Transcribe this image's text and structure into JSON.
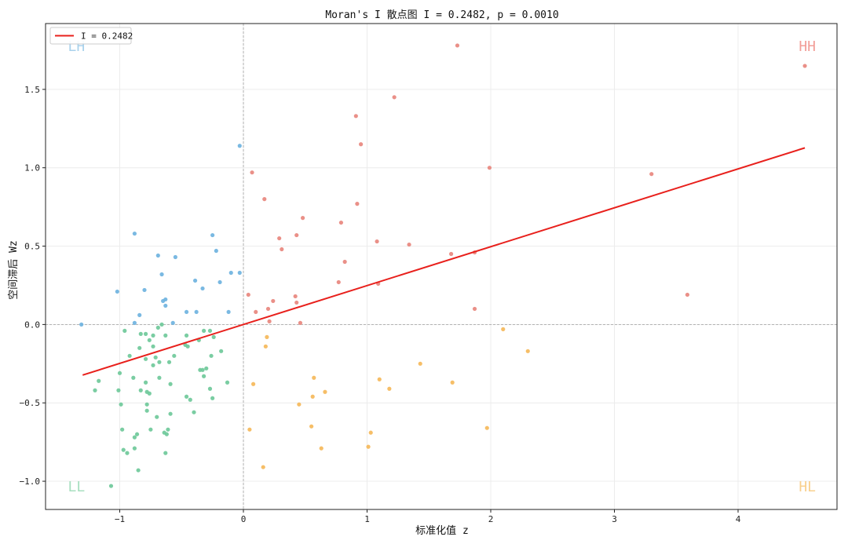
{
  "chart_data": {
    "type": "scatter",
    "title": "Moran's I 散点图   I = 0.2482,  p = 0.0010",
    "xlabel": "标准化值  z",
    "ylabel": "空间滞后  Wz",
    "xlim": [
      -1.6,
      4.8
    ],
    "ylim": [
      -1.18,
      1.92
    ],
    "xticks": [
      -1,
      0,
      1,
      2,
      3,
      4
    ],
    "yticks": [
      -1.0,
      -0.5,
      0.0,
      0.5,
      1.0,
      1.5
    ],
    "xtick_labels": [
      "−1",
      "0",
      "1",
      "2",
      "3",
      "4"
    ],
    "ytick_labels": [
      "−1.0",
      "−0.5",
      "0.0",
      "0.5",
      "1.0",
      "1.5"
    ],
    "grid": true,
    "legend": {
      "position": "top-left",
      "entries": [
        {
          "label": "I = 0.2482",
          "color": "#e8201c"
        }
      ]
    },
    "regression_line": {
      "slope": 0.2482,
      "intercept": 0.0,
      "x_range": [
        -1.3,
        4.54
      ],
      "color": "#e8201c"
    },
    "quadrant_labels": [
      {
        "text": "HH",
        "x": 4.56,
        "y": 1.78,
        "color": "#f29e98"
      },
      {
        "text": "LH",
        "x": -1.35,
        "y": 1.78,
        "color": "#a9d2ec"
      },
      {
        "text": "LL",
        "x": -1.35,
        "y": -1.03,
        "color": "#a7dfbf"
      },
      {
        "text": "HL",
        "x": 4.56,
        "y": -1.03,
        "color": "#f8d08e"
      }
    ],
    "series": [
      {
        "name": "HH",
        "color": "#e8877e",
        "points": [
          [
            1.73,
            1.78
          ],
          [
            4.54,
            1.65
          ],
          [
            1.22,
            1.45
          ],
          [
            0.91,
            1.33
          ],
          [
            0.95,
            1.15
          ],
          [
            1.99,
            1.0
          ],
          [
            0.07,
            0.97
          ],
          [
            3.3,
            0.96
          ],
          [
            0.17,
            0.8
          ],
          [
            0.92,
            0.77
          ],
          [
            0.48,
            0.68
          ],
          [
            0.79,
            0.65
          ],
          [
            0.43,
            0.57
          ],
          [
            0.29,
            0.55
          ],
          [
            1.08,
            0.53
          ],
          [
            1.34,
            0.51
          ],
          [
            0.31,
            0.48
          ],
          [
            1.68,
            0.45
          ],
          [
            1.87,
            0.46
          ],
          [
            0.82,
            0.4
          ],
          [
            0.77,
            0.27
          ],
          [
            1.09,
            0.26
          ],
          [
            0.04,
            0.19
          ],
          [
            3.59,
            0.19
          ],
          [
            0.42,
            0.18
          ],
          [
            0.24,
            0.15
          ],
          [
            0.43,
            0.14
          ],
          [
            1.87,
            0.1
          ],
          [
            0.2,
            0.1
          ],
          [
            0.1,
            0.08
          ],
          [
            0.21,
            0.02
          ],
          [
            0.46,
            0.01
          ]
        ]
      },
      {
        "name": "LH",
        "color": "#6fb3e0",
        "points": [
          [
            -0.03,
            1.14
          ],
          [
            -0.88,
            0.58
          ],
          [
            -0.25,
            0.57
          ],
          [
            -0.22,
            0.47
          ],
          [
            -0.69,
            0.44
          ],
          [
            -0.55,
            0.43
          ],
          [
            -0.03,
            0.33
          ],
          [
            -0.1,
            0.33
          ],
          [
            -0.66,
            0.32
          ],
          [
            -0.39,
            0.28
          ],
          [
            -0.19,
            0.27
          ],
          [
            -0.33,
            0.23
          ],
          [
            -0.8,
            0.22
          ],
          [
            -1.02,
            0.21
          ],
          [
            -0.63,
            0.16
          ],
          [
            -0.65,
            0.15
          ],
          [
            -0.63,
            0.12
          ],
          [
            -0.12,
            0.08
          ],
          [
            -0.46,
            0.08
          ],
          [
            -0.38,
            0.08
          ],
          [
            -0.84,
            0.06
          ],
          [
            -0.57,
            0.01
          ],
          [
            -0.88,
            0.01
          ],
          [
            -1.31,
            0.0
          ]
        ]
      },
      {
        "name": "LL",
        "color": "#6fc99a",
        "points": [
          [
            -0.66,
            0.0
          ],
          [
            -0.69,
            -0.02
          ],
          [
            -0.27,
            -0.04
          ],
          [
            -0.96,
            -0.04
          ],
          [
            -0.32,
            -0.04
          ],
          [
            -0.83,
            -0.06
          ],
          [
            -0.79,
            -0.06
          ],
          [
            -0.63,
            -0.07
          ],
          [
            -0.73,
            -0.07
          ],
          [
            -0.46,
            -0.07
          ],
          [
            -0.24,
            -0.08
          ],
          [
            -0.36,
            -0.1
          ],
          [
            -0.76,
            -0.1
          ],
          [
            -0.47,
            -0.13
          ],
          [
            -0.45,
            -0.14
          ],
          [
            -0.73,
            -0.14
          ],
          [
            -0.84,
            -0.15
          ],
          [
            -0.18,
            -0.17
          ],
          [
            -0.56,
            -0.2
          ],
          [
            -0.26,
            -0.2
          ],
          [
            -0.71,
            -0.21
          ],
          [
            -0.92,
            -0.2
          ],
          [
            -0.79,
            -0.22
          ],
          [
            -0.68,
            -0.24
          ],
          [
            -0.6,
            -0.24
          ],
          [
            -0.73,
            -0.26
          ],
          [
            -0.3,
            -0.28
          ],
          [
            -0.35,
            -0.29
          ],
          [
            -0.33,
            -0.29
          ],
          [
            -1.0,
            -0.31
          ],
          [
            -0.32,
            -0.33
          ],
          [
            -0.68,
            -0.34
          ],
          [
            -0.89,
            -0.34
          ],
          [
            -0.79,
            -0.37
          ],
          [
            -1.17,
            -0.36
          ],
          [
            -0.13,
            -0.37
          ],
          [
            -0.59,
            -0.38
          ],
          [
            -0.27,
            -0.41
          ],
          [
            -0.83,
            -0.42
          ],
          [
            -1.2,
            -0.42
          ],
          [
            -1.01,
            -0.42
          ],
          [
            -0.78,
            -0.43
          ],
          [
            -0.76,
            -0.44
          ],
          [
            -0.46,
            -0.46
          ],
          [
            -0.25,
            -0.47
          ],
          [
            -0.43,
            -0.48
          ],
          [
            -0.78,
            -0.51
          ],
          [
            -0.99,
            -0.51
          ],
          [
            -0.78,
            -0.55
          ],
          [
            -0.4,
            -0.56
          ],
          [
            -0.59,
            -0.57
          ],
          [
            -0.7,
            -0.59
          ],
          [
            -0.98,
            -0.67
          ],
          [
            -0.61,
            -0.67
          ],
          [
            -0.75,
            -0.67
          ],
          [
            -0.64,
            -0.69
          ],
          [
            -0.62,
            -0.7
          ],
          [
            -0.86,
            -0.7
          ],
          [
            -0.88,
            -0.72
          ],
          [
            -0.97,
            -0.8
          ],
          [
            -0.88,
            -0.79
          ],
          [
            -0.94,
            -0.82
          ],
          [
            -0.63,
            -0.82
          ],
          [
            -0.85,
            -0.93
          ],
          [
            -1.07,
            -1.03
          ]
        ]
      },
      {
        "name": "HL",
        "color": "#f5b95a",
        "points": [
          [
            2.1,
            -0.03
          ],
          [
            0.19,
            -0.08
          ],
          [
            0.18,
            -0.14
          ],
          [
            2.3,
            -0.17
          ],
          [
            1.43,
            -0.25
          ],
          [
            0.57,
            -0.34
          ],
          [
            1.1,
            -0.35
          ],
          [
            1.69,
            -0.37
          ],
          [
            0.08,
            -0.38
          ],
          [
            1.18,
            -0.41
          ],
          [
            0.66,
            -0.43
          ],
          [
            0.56,
            -0.46
          ],
          [
            0.45,
            -0.51
          ],
          [
            0.55,
            -0.65
          ],
          [
            1.97,
            -0.66
          ],
          [
            0.05,
            -0.67
          ],
          [
            1.03,
            -0.69
          ],
          [
            1.01,
            -0.78
          ],
          [
            0.63,
            -0.79
          ],
          [
            0.16,
            -0.91
          ]
        ]
      }
    ]
  }
}
